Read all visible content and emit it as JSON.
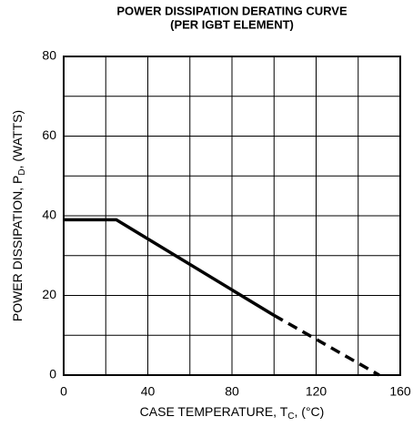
{
  "chart_data": {
    "type": "line",
    "title": [
      "POWER DISSIPATION DERATING CURVE",
      "(PER IGBT ELEMENT)"
    ],
    "xlabel": [
      "CASE TEMPERATURE, T",
      "C",
      ", (°C)"
    ],
    "ylabel": [
      "POWER DISSIPATION, P",
      "D",
      ", (WATTS)"
    ],
    "xlim": [
      0,
      160
    ],
    "xticks": [
      0,
      40,
      80,
      120,
      160
    ],
    "xminor_ticks": [
      20,
      60,
      100,
      140
    ],
    "ylim": [
      0,
      80
    ],
    "yticks": [
      0,
      20,
      40,
      60,
      80
    ],
    "yminor_ticks": [
      10,
      30,
      50,
      70
    ],
    "grid": true,
    "series": [
      {
        "color": "#000000",
        "style": "solid",
        "x": [
          0,
          25,
          100
        ],
        "values": [
          39,
          39,
          15
        ]
      },
      {
        "color": "#000000",
        "style": "dashed",
        "x": [
          100,
          150
        ],
        "values": [
          15,
          0
        ]
      }
    ]
  }
}
